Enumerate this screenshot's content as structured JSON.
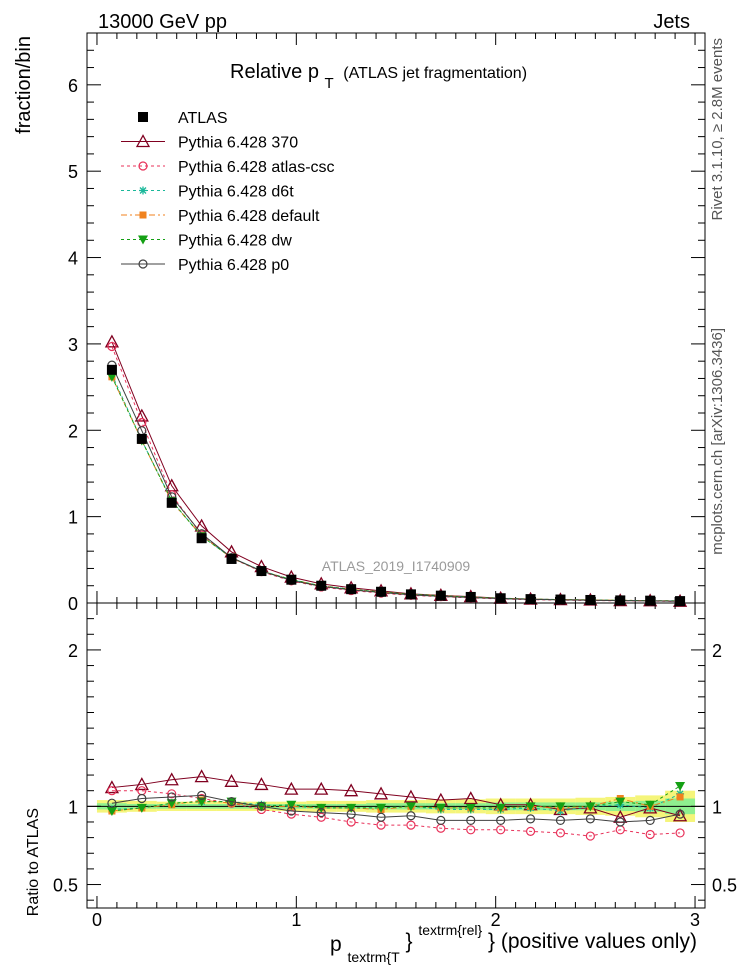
{
  "header": {
    "energy_label": "13000 GeV pp",
    "process_label": "Jets"
  },
  "side_labels": {
    "rivet": "Rivet 3.1.10, ≥ 2.8M events",
    "mcplots": "mcplots.cern.ch [arXiv:1306.3436]"
  },
  "chart_data": {
    "type": "line",
    "title_main": "Relative p",
    "title_sub": "T",
    "title_rest": "(ATLAS jet fragmentation)",
    "analysis_label": "ATLAS_2019_I1740909",
    "ylabel": "fraction/bin",
    "ratio_ylabel": "Ratio to ATLAS",
    "xlabel_p": "p",
    "xlabel_sub": "textrm{T",
    "xlabel_sup": "textrm{rel}",
    "xlabel_rest": "} (positive values only)",
    "xlim": [
      -0.05,
      3.05
    ],
    "ylim": [
      0,
      6.6
    ],
    "ratio_ylim": [
      0.35,
      2.3
    ],
    "x_ticks": [
      "0",
      "1",
      "2",
      "3"
    ],
    "x_tick_values": [
      0,
      1,
      2,
      3
    ],
    "y_ticks": [
      "0",
      "1",
      "2",
      "3",
      "4",
      "5",
      "6"
    ],
    "y_tick_values": [
      0,
      1,
      2,
      3,
      4,
      5,
      6
    ],
    "ratio_ticks": [
      "0.5",
      "1",
      "2"
    ],
    "ratio_tick_values": [
      0.5,
      1,
      2
    ],
    "x": [
      0.075,
      0.225,
      0.375,
      0.525,
      0.675,
      0.825,
      0.975,
      1.125,
      1.275,
      1.425,
      1.575,
      1.725,
      1.875,
      2.025,
      2.175,
      2.325,
      2.475,
      2.625,
      2.775,
      2.925
    ],
    "bin_halfwidth": 0.075,
    "data": {
      "name": "ATLAS",
      "values": [
        2.7,
        1.9,
        1.16,
        0.75,
        0.51,
        0.37,
        0.27,
        0.2,
        0.16,
        0.13,
        0.1,
        0.085,
        0.07,
        0.055,
        0.045,
        0.04,
        0.035,
        0.03,
        0.027,
        0.022
      ],
      "errors": [
        0.05,
        0.04,
        0.03,
        0.02,
        0.015,
        0.01,
        0.01,
        0.008,
        0.006,
        0.005,
        0.005,
        0.004,
        0.004,
        0.003,
        0.003,
        0.003,
        0.003,
        0.003,
        0.003,
        0.003
      ],
      "color": "#000000"
    },
    "ratio_band_yellow": [
      0.04,
      0.035,
      0.03,
      0.03,
      0.03,
      0.03,
      0.03,
      0.035,
      0.035,
      0.04,
      0.04,
      0.045,
      0.045,
      0.05,
      0.05,
      0.05,
      0.055,
      0.06,
      0.07,
      0.1
    ],
    "ratio_band_green": [
      0.02,
      0.015,
      0.015,
      0.015,
      0.015,
      0.015,
      0.015,
      0.015,
      0.015,
      0.02,
      0.02,
      0.02,
      0.02,
      0.025,
      0.025,
      0.025,
      0.025,
      0.03,
      0.035,
      0.05
    ],
    "series": [
      {
        "name": "Pythia 6.428 370",
        "color": "#800020",
        "marker": "triangle-open",
        "dash": "",
        "ratio": [
          1.12,
          1.14,
          1.17,
          1.19,
          1.16,
          1.14,
          1.11,
          1.11,
          1.1,
          1.08,
          1.06,
          1.04,
          1.05,
          1.01,
          1.01,
          0.98,
          0.99,
          0.93,
          0.99,
          0.94
        ]
      },
      {
        "name": "Pythia 6.428 atlas-csc",
        "color": "#e8325a",
        "marker": "circle-open",
        "dash": "3,3",
        "ratio": [
          1.1,
          1.1,
          1.08,
          1.05,
          1.02,
          0.98,
          0.95,
          0.93,
          0.9,
          0.88,
          0.88,
          0.86,
          0.85,
          0.85,
          0.84,
          0.83,
          0.81,
          0.85,
          0.82,
          0.83
        ]
      },
      {
        "name": "Pythia 6.428 d6t",
        "color": "#1ab89a",
        "marker": "star",
        "dash": "3,3",
        "ratio": [
          0.98,
          0.99,
          1.02,
          1.03,
          1.03,
          1.01,
          1.0,
          0.99,
          0.99,
          0.99,
          1.0,
          0.98,
          0.98,
          0.98,
          0.99,
          0.97,
          1.0,
          1.01,
          0.99,
          1.08
        ]
      },
      {
        "name": "Pythia 6.428 default",
        "color": "#f0821e",
        "marker": "square-filled",
        "dash": "6,3,2,3",
        "ratio": [
          0.97,
          0.99,
          1.01,
          1.04,
          1.02,
          1.0,
          1.0,
          0.99,
          0.99,
          0.98,
          1.0,
          0.99,
          0.99,
          0.99,
          1.0,
          0.99,
          1.0,
          1.05,
          1.0,
          1.06
        ]
      },
      {
        "name": "Pythia 6.428 dw",
        "color": "#14a014",
        "marker": "triangle-down-filled",
        "dash": "3,3",
        "ratio": [
          0.97,
          0.99,
          1.02,
          1.03,
          1.03,
          1.0,
          1.01,
          0.99,
          0.99,
          0.99,
          1.0,
          0.99,
          0.99,
          0.99,
          1.0,
          1.0,
          1.0,
          1.03,
          1.01,
          1.13
        ]
      },
      {
        "name": "Pythia 6.428 p0",
        "color": "#404040",
        "marker": "circle-open",
        "dash": "",
        "ratio": [
          1.02,
          1.05,
          1.06,
          1.07,
          1.03,
          1.0,
          0.97,
          0.96,
          0.95,
          0.93,
          0.94,
          0.91,
          0.91,
          0.91,
          0.92,
          0.91,
          0.92,
          0.9,
          0.91,
          0.95
        ]
      }
    ],
    "legend_position": "top-left",
    "grid": false
  }
}
